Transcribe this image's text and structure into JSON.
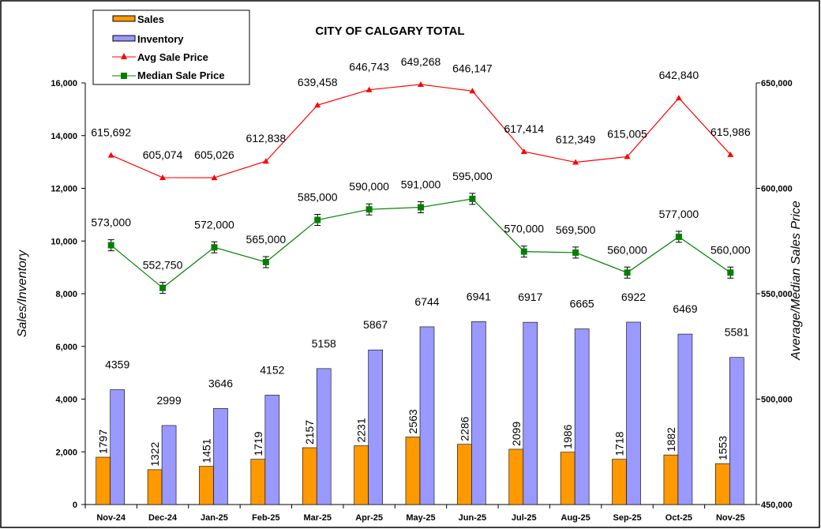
{
  "chart_data": {
    "type": "bar+line",
    "title": "CITY OF CALGARY TOTAL",
    "ylabel_left": "Sales/Inventory",
    "ylabel_right": "Average/Median Sales Price",
    "ylim_left": [
      0,
      16000
    ],
    "ylim_right": [
      450000,
      650000
    ],
    "yticks_left": [
      "0",
      "2,000",
      "4,000",
      "6,000",
      "8,000",
      "10,000",
      "12,000",
      "14,000",
      "16,000"
    ],
    "yticks_right": [
      "450,000",
      "500,000",
      "550,000",
      "600,000",
      "650,000"
    ],
    "legend_position": "top-left",
    "categories": [
      "Nov-24",
      "Dec-24",
      "Jan-25",
      "Feb-25",
      "Mar-25",
      "Apr-25",
      "May-25",
      "Jun-25",
      "Jul-25",
      "Aug-25",
      "Sep-25",
      "Oct-25",
      "Nov-25"
    ],
    "series": [
      {
        "name": "Sales",
        "type": "bar",
        "axis": "left",
        "color": "#FF9900",
        "values": [
          1797,
          1322,
          1451,
          1719,
          2157,
          2231,
          2563,
          2286,
          2099,
          1986,
          1718,
          1882,
          1553
        ],
        "labels": [
          "1797",
          "1322",
          "1451",
          "1719",
          "2157",
          "2231",
          "2563",
          "2286",
          "2099",
          "1986",
          "1718",
          "1882",
          "1553"
        ]
      },
      {
        "name": "Inventory",
        "type": "bar",
        "axis": "left",
        "color": "#9999FF",
        "values": [
          4359,
          2999,
          3646,
          4152,
          5158,
          5867,
          6744,
          6941,
          6917,
          6665,
          6922,
          6469,
          5581
        ],
        "labels": [
          "4359",
          "2999",
          "3646",
          "4152",
          "5158",
          "5867",
          "6744",
          "6941",
          "6917",
          "6665",
          "6922",
          "6469",
          "5581"
        ]
      },
      {
        "name": "Avg Sale Price",
        "type": "line",
        "axis": "right",
        "color": "#FF0000",
        "values": [
          615692,
          605074,
          605026,
          612838,
          639458,
          646743,
          649268,
          646147,
          617414,
          612349,
          615005,
          642840,
          615986
        ],
        "labels": [
          "615,692",
          "605,074",
          "605,026",
          "612,838",
          "639,458",
          "646,743",
          "649,268",
          "646,147",
          "617,414",
          "612,349",
          "615,005",
          "642,840",
          "615,986"
        ]
      },
      {
        "name": "Median Sale Price",
        "type": "line",
        "axis": "right",
        "color": "#008000",
        "values": [
          573000,
          552750,
          572000,
          565000,
          585000,
          590000,
          591000,
          595000,
          570000,
          569500,
          560000,
          577000,
          560000
        ],
        "labels": [
          "573,000",
          "552,750",
          "572,000",
          "565,000",
          "585,000",
          "590,000",
          "591,000",
          "595,000",
          "570,000",
          "569,500",
          "560,000",
          "577,000",
          "560,000"
        ]
      }
    ]
  }
}
